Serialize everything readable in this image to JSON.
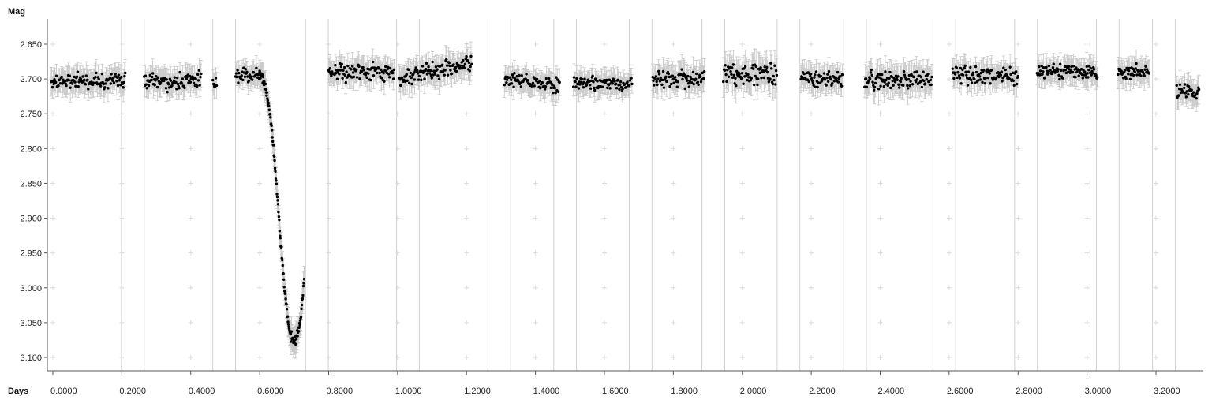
{
  "chart_data": {
    "type": "scatter",
    "title": "",
    "xlabel": "Days",
    "ylabel": "Mag",
    "xlim": [
      -0.03,
      3.33
    ],
    "ylim": [
      2.6,
      3.12
    ],
    "y_inverted": true,
    "grid": true,
    "x_ticks": [
      "0.0000",
      "0.2000",
      "0.4000",
      "0.6000",
      "0.8000",
      "1.0000",
      "1.2000",
      "1.4000",
      "1.6000",
      "1.8000",
      "2.0000",
      "2.2000",
      "2.4000",
      "2.6000",
      "2.8000",
      "3.0000",
      "3.2000"
    ],
    "y_ticks": [
      "2.650",
      "2.700",
      "2.750",
      "2.800",
      "2.850",
      "2.900",
      "2.950",
      "3.000",
      "3.050",
      "3.100"
    ],
    "point_color": "#000000",
    "errorbar_color": "#c8c8c8",
    "gap_line_color": "#d0d0d0",
    "segment_separators_days": [
      0.199,
      0.265,
      0.464,
      0.53,
      0.733,
      0.799,
      0.997,
      1.063,
      1.262,
      1.328,
      1.453,
      1.519,
      1.672,
      1.738,
      1.883,
      1.949,
      2.101,
      2.167,
      2.294,
      2.36,
      2.553,
      2.619,
      2.79,
      2.856,
      3.027,
      3.093,
      3.19,
      3.256
    ],
    "segments": [
      {
        "x_start": -0.005,
        "x_end": 0.21,
        "mag_mean": 2.703,
        "mag_scatter": 0.01,
        "error": 0.016
      },
      {
        "x_start": 0.265,
        "x_end": 0.43,
        "mag_mean": 2.703,
        "mag_scatter": 0.01,
        "error": 0.016
      },
      {
        "x_start": 0.464,
        "x_end": 0.475,
        "mag_mean": 2.705,
        "mag_scatter": 0.012,
        "error": 0.018
      },
      {
        "x_start": 0.53,
        "x_end": 0.6,
        "mag_mean": 2.695,
        "mag_scatter": 0.008,
        "error": 0.014
      },
      {
        "x_start": 0.8,
        "x_end": 0.99,
        "mag_mean": 2.69,
        "mag_scatter": 0.01,
        "error": 0.016
      },
      {
        "x_start": 1.005,
        "x_end": 1.215,
        "mag_mean": 2.688,
        "mag_scatter": 0.011,
        "error": 0.017,
        "trend": -0.02
      },
      {
        "x_start": 1.31,
        "x_end": 1.47,
        "mag_mean": 2.705,
        "mag_scatter": 0.009,
        "error": 0.015,
        "trend": 0.012
      },
      {
        "x_start": 1.51,
        "x_end": 1.68,
        "mag_mean": 2.705,
        "mag_scatter": 0.009,
        "error": 0.015
      },
      {
        "x_start": 1.74,
        "x_end": 1.89,
        "mag_mean": 2.698,
        "mag_scatter": 0.011,
        "error": 0.017
      },
      {
        "x_start": 1.945,
        "x_end": 2.1,
        "mag_mean": 2.693,
        "mag_scatter": 0.014,
        "error": 0.02
      },
      {
        "x_start": 2.17,
        "x_end": 2.29,
        "mag_mean": 2.7,
        "mag_scatter": 0.01,
        "error": 0.016
      },
      {
        "x_start": 2.355,
        "x_end": 2.55,
        "mag_mean": 2.702,
        "mag_scatter": 0.012,
        "error": 0.018
      },
      {
        "x_start": 2.61,
        "x_end": 2.8,
        "mag_mean": 2.695,
        "mag_scatter": 0.01,
        "error": 0.016
      },
      {
        "x_start": 2.855,
        "x_end": 3.03,
        "mag_mean": 2.69,
        "mag_scatter": 0.01,
        "error": 0.016
      },
      {
        "x_start": 3.09,
        "x_end": 3.18,
        "mag_mean": 2.69,
        "mag_scatter": 0.01,
        "error": 0.016
      },
      {
        "x_start": 3.26,
        "x_end": 3.325,
        "mag_mean": 2.718,
        "mag_scatter": 0.01,
        "error": 0.016
      }
    ],
    "eclipse_profile": [
      [
        0.6,
        2.69
      ],
      [
        0.61,
        2.7
      ],
      [
        0.62,
        2.72
      ],
      [
        0.63,
        2.75
      ],
      [
        0.64,
        2.8
      ],
      [
        0.65,
        2.86
      ],
      [
        0.66,
        2.93
      ],
      [
        0.67,
        2.99
      ],
      [
        0.68,
        3.04
      ],
      [
        0.69,
        3.07
      ],
      [
        0.7,
        3.075
      ],
      [
        0.71,
        3.07
      ],
      [
        0.72,
        3.04
      ],
      [
        0.73,
        2.98
      ]
    ],
    "eclipse_error": 0.018
  }
}
